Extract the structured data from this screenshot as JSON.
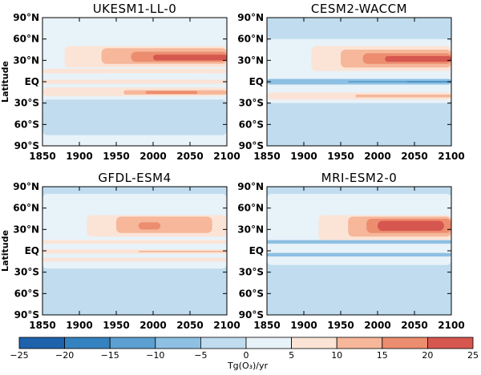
{
  "chart_data": {
    "type": "heatmap",
    "x_ticks": [
      1850,
      1900,
      1950,
      2000,
      2050,
      2100
    ],
    "xlim": [
      1850,
      2100
    ],
    "y_tick_labels": [
      "90°N",
      "60°N",
      "30°N",
      "EQ",
      "30°S",
      "60°S",
      "90°S"
    ],
    "y_tick_values": [
      90,
      60,
      30,
      0,
      -30,
      -60,
      -90
    ],
    "ylim": [
      -90,
      90
    ],
    "ylabel": "Latitude",
    "colorbar": {
      "label": "Tg(O₃)/yr",
      "tick_values": [
        -25,
        -20,
        -15,
        -10,
        -5,
        0,
        5,
        10,
        15,
        20,
        25
      ],
      "tick_labels": [
        "−25",
        "−20",
        "−15",
        "−10",
        "−5",
        "0",
        "5",
        "10",
        "15",
        "20",
        "25"
      ],
      "colors": [
        "#1e62ac",
        "#3582c0",
        "#5c9fd0",
        "#8dc0e2",
        "#c0dcee",
        "#e8f2f9",
        "#fbe4d6",
        "#f6b79a",
        "#ec8d6f",
        "#d6574f",
        "#bb2a33"
      ]
    },
    "panels": [
      {
        "title": "UKESM1-LL-0",
        "bands": [
          {
            "lat": [
              -90,
              90
            ],
            "years": [
              1850,
              2100
            ],
            "value": 2.5
          },
          {
            "lat": [
              -75,
              -25
            ],
            "years": [
              1850,
              2100
            ],
            "value": -2.5
          },
          {
            "lat": [
              -20,
              -8
            ],
            "years": [
              1850,
              2100
            ],
            "value": 7.5
          },
          {
            "lat": [
              -18,
              -12
            ],
            "years": [
              1960,
              2100
            ],
            "value": 12.5
          },
          {
            "lat": [
              -17,
              -13
            ],
            "years": [
              1990,
              2060
            ],
            "value": 17.5
          },
          {
            "lat": [
              -3,
              3
            ],
            "years": [
              1850,
              2100
            ],
            "value": 7.5
          },
          {
            "lat": [
              12,
              18
            ],
            "years": [
              1850,
              2100
            ],
            "value": 7.5
          },
          {
            "lat": [
              20,
              50
            ],
            "years": [
              1880,
              2100
            ],
            "value": 7.5
          },
          {
            "lat": [
              25,
              47
            ],
            "years": [
              1930,
              2100
            ],
            "value": 12.5
          },
          {
            "lat": [
              28,
              42
            ],
            "years": [
              1970,
              2100
            ],
            "value": 17.5
          },
          {
            "lat": [
              30,
              38
            ],
            "years": [
              2000,
              2100
            ],
            "value": 22.5
          }
        ]
      },
      {
        "title": "CESM2-WACCM",
        "bands": [
          {
            "lat": [
              -90,
              90
            ],
            "years": [
              1850,
              2100
            ],
            "value": -2.5
          },
          {
            "lat": [
              -30,
              60
            ],
            "years": [
              1850,
              2100
            ],
            "value": 2.5
          },
          {
            "lat": [
              -25,
              -15
            ],
            "years": [
              1850,
              2100
            ],
            "value": 7.5
          },
          {
            "lat": [
              -22,
              -18
            ],
            "years": [
              1970,
              2100
            ],
            "value": 12.5
          },
          {
            "lat": [
              -4,
              4
            ],
            "years": [
              1850,
              2100
            ],
            "value": -7.5
          },
          {
            "lat": [
              -1,
              1
            ],
            "years": [
              1960,
              2100
            ],
            "value": -12.5
          },
          {
            "lat": [
              -0.5,
              0.5
            ],
            "years": [
              2040,
              2100
            ],
            "value": -17.5
          },
          {
            "lat": [
              15,
              50
            ],
            "years": [
              1910,
              2100
            ],
            "value": 7.5
          },
          {
            "lat": [
              20,
              45
            ],
            "years": [
              1950,
              2100
            ],
            "value": 12.5
          },
          {
            "lat": [
              25,
              40
            ],
            "years": [
              1980,
              2100
            ],
            "value": 17.5
          },
          {
            "lat": [
              28,
              36
            ],
            "years": [
              2010,
              2100
            ],
            "value": 22.5
          }
        ]
      },
      {
        "title": "GFDL-ESM4",
        "bands": [
          {
            "lat": [
              -90,
              90
            ],
            "years": [
              1850,
              2100
            ],
            "value": -2.5
          },
          {
            "lat": [
              -25,
              80
            ],
            "years": [
              1850,
              2100
            ],
            "value": 2.5
          },
          {
            "lat": [
              -15,
              -10
            ],
            "years": [
              1850,
              2100
            ],
            "value": 7.5
          },
          {
            "lat": [
              -4,
              2
            ],
            "years": [
              1850,
              2100
            ],
            "value": 7.5
          },
          {
            "lat": [
              -2,
              0
            ],
            "years": [
              1980,
              2100
            ],
            "value": 12.5
          },
          {
            "lat": [
              10,
              15
            ],
            "years": [
              1850,
              2100
            ],
            "value": 7.5
          },
          {
            "lat": [
              20,
              50
            ],
            "years": [
              1910,
              2100
            ],
            "value": 7.5
          },
          {
            "lat": [
              25,
              48
            ],
            "years": [
              1950,
              2080
            ],
            "value": 12.5
          },
          {
            "lat": [
              30,
              40
            ],
            "years": [
              1980,
              2010
            ],
            "value": 17.5
          }
        ]
      },
      {
        "title": "MRI-ESM2-0",
        "bands": [
          {
            "lat": [
              -90,
              90
            ],
            "years": [
              1850,
              2100
            ],
            "value": -2.5
          },
          {
            "lat": [
              -20,
              80
            ],
            "years": [
              1850,
              2100
            ],
            "value": 2.5
          },
          {
            "lat": [
              -8,
              -3
            ],
            "years": [
              1850,
              2100
            ],
            "value": -7.5
          },
          {
            "lat": [
              10,
              15
            ],
            "years": [
              1850,
              2100
            ],
            "value": -7.5
          },
          {
            "lat": [
              15,
              50
            ],
            "years": [
              1920,
              2100
            ],
            "value": 7.5
          },
          {
            "lat": [
              20,
              48
            ],
            "years": [
              1960,
              2100
            ],
            "value": 12.5
          },
          {
            "lat": [
              25,
              45
            ],
            "years": [
              1985,
              2100
            ],
            "value": 17.5
          },
          {
            "lat": [
              28,
              42
            ],
            "years": [
              2000,
              2090
            ],
            "value": 22.5
          }
        ]
      }
    ]
  }
}
